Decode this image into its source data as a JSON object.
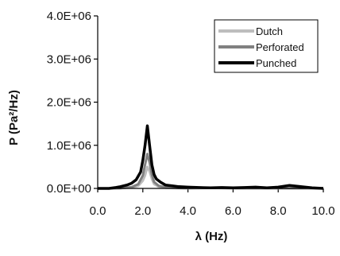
{
  "chart_data": {
    "type": "line",
    "xlabel": "λ (Hz)",
    "ylabel": "P (Pa²/Hz)",
    "xlim": [
      0,
      10
    ],
    "ylim": [
      0,
      4000000
    ],
    "x_ticks": [
      "0.0",
      "2.0",
      "4.0",
      "6.0",
      "8.0",
      "10.0"
    ],
    "y_ticks": [
      "0.0E+00",
      "1.0E+06",
      "2.0E+06",
      "3.0E+06",
      "4.0E+06"
    ],
    "grid": false,
    "legend_position": "top-right",
    "series": [
      {
        "name": "Dutch",
        "color": "#bdbdbd",
        "x": [
          0.0,
          0.5,
          1.0,
          1.5,
          1.8,
          2.0,
          2.1,
          2.2,
          2.3,
          2.4,
          2.5,
          2.7,
          3.0,
          3.5,
          4.0,
          5.0,
          6.0,
          7.0,
          8.0,
          9.0,
          10.0
        ],
        "y": [
          0,
          0,
          5000,
          20000,
          60000,
          180000,
          300000,
          500000,
          400000,
          220000,
          100000,
          40000,
          15000,
          8000,
          5000,
          10000,
          5000,
          3000,
          5000,
          2000,
          1000
        ]
      },
      {
        "name": "Perforated",
        "color": "#808080",
        "x": [
          0.0,
          0.5,
          1.0,
          1.5,
          1.8,
          2.0,
          2.1,
          2.2,
          2.3,
          2.4,
          2.5,
          2.7,
          3.0,
          3.5,
          4.0,
          5.0,
          6.0,
          7.0,
          8.0,
          9.0,
          10.0
        ],
        "y": [
          0,
          0,
          5000,
          30000,
          100000,
          300000,
          550000,
          800000,
          600000,
          320000,
          150000,
          60000,
          25000,
          10000,
          6000,
          12000,
          6000,
          4000,
          6000,
          3000,
          1000
        ]
      },
      {
        "name": "Punched",
        "color": "#000000",
        "x": [
          0.0,
          0.5,
          0.8,
          1.0,
          1.3,
          1.5,
          1.7,
          1.9,
          2.0,
          2.1,
          2.2,
          2.3,
          2.4,
          2.5,
          2.6,
          2.8,
          3.0,
          3.3,
          3.6,
          4.0,
          4.5,
          5.0,
          5.5,
          6.0,
          6.5,
          7.0,
          7.5,
          8.0,
          8.5,
          9.0,
          9.5,
          10.0
        ],
        "y": [
          0,
          0,
          20000,
          40000,
          80000,
          120000,
          200000,
          380000,
          650000,
          1000000,
          1450000,
          1000000,
          550000,
          320000,
          220000,
          140000,
          80000,
          60000,
          40000,
          30000,
          20000,
          15000,
          20000,
          15000,
          20000,
          30000,
          15000,
          30000,
          70000,
          40000,
          15000,
          0
        ]
      }
    ]
  }
}
